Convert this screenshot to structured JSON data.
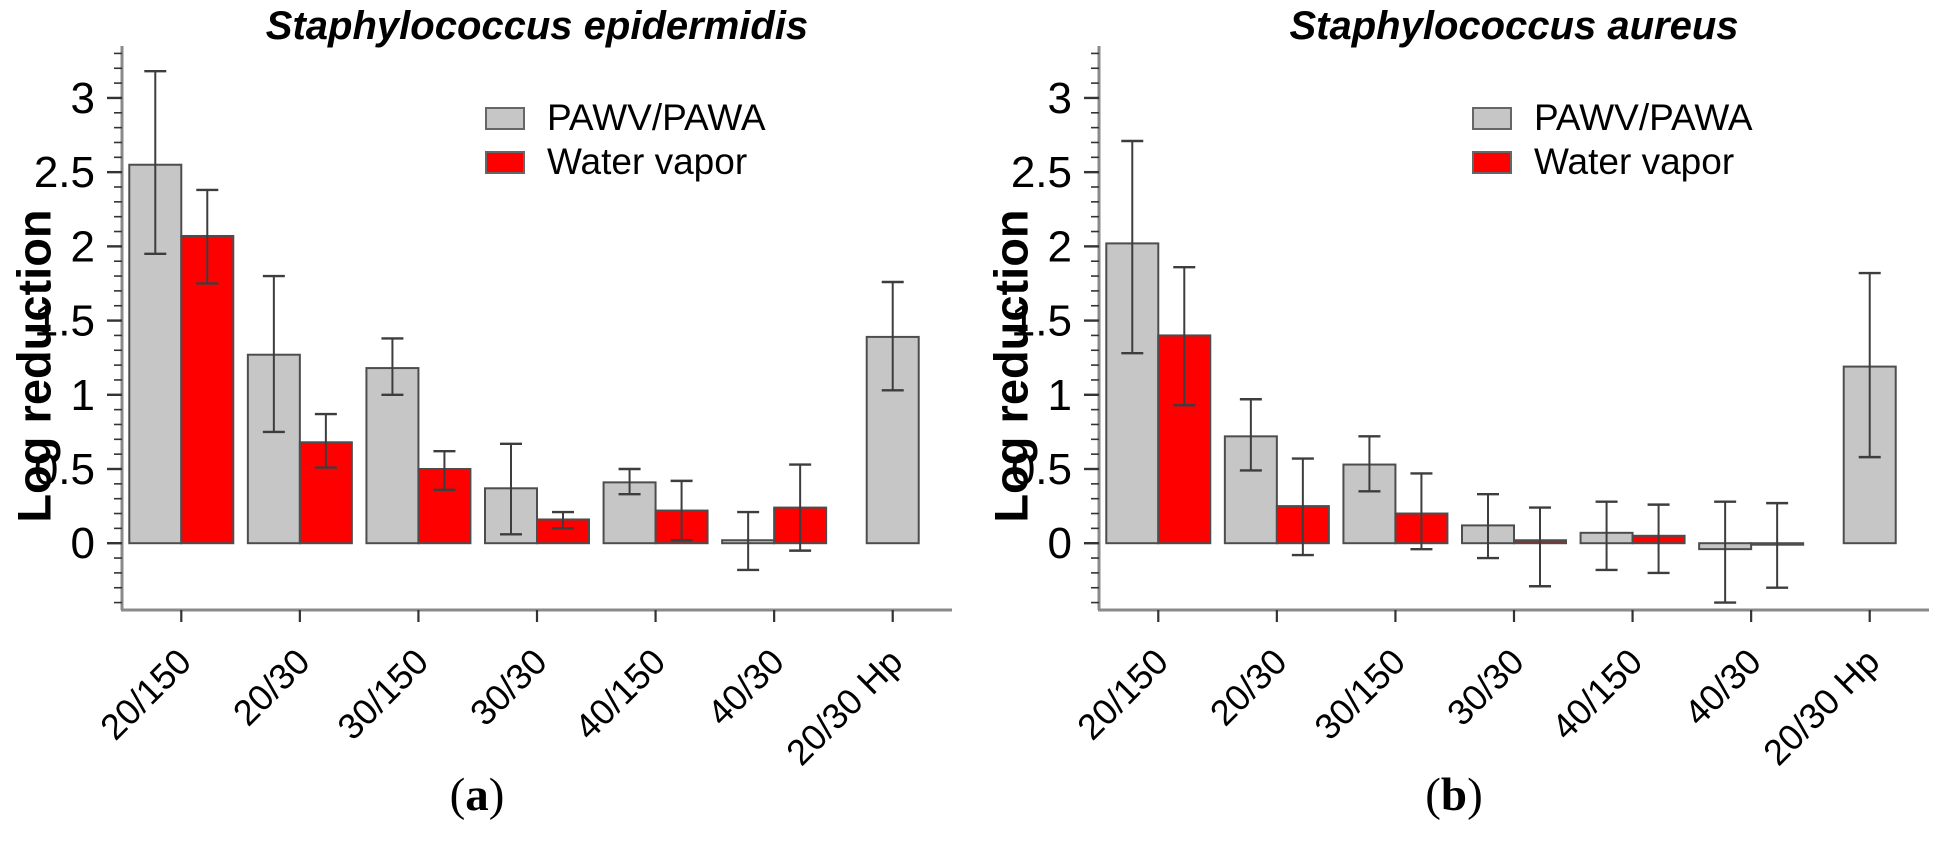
{
  "figure": {
    "legend": {
      "position": "top-center",
      "items": [
        {
          "label": "PAWV/PAWA",
          "swatch": "gray-swatch",
          "color": "#c6c6c6"
        },
        {
          "label": "Water vapor",
          "swatch": "red-swatch",
          "color": "#ff0000"
        }
      ]
    }
  },
  "colors": {
    "bar_gray": "#c6c6c6",
    "bar_red": "#ff0000",
    "bar_stroke": "#4d4d4d",
    "error_bar": "#3d3d3d",
    "axis_spine": "#8a8a8a",
    "tick": "#333333",
    "text": "#000000",
    "background": "#ffffff"
  },
  "chart_data": [
    {
      "type": "bar",
      "title": "Staphylococcus epidermidis",
      "caption_prefix": "(",
      "caption_letter": "a",
      "caption_suffix": ")",
      "xlabel": "",
      "ylabel": "Log reduction",
      "ylim": [
        -0.45,
        3.35
      ],
      "yticks": [
        0,
        0.5,
        1,
        1.5,
        2,
        2.5,
        3
      ],
      "ytick_labels": [
        "0",
        "0.5",
        "1",
        "1.5",
        "2",
        "2.5",
        "3"
      ],
      "minor_tick_step": 0.1,
      "grid": false,
      "categories": [
        "20/150",
        "20/30",
        "30/150",
        "30/30",
        "40/150",
        "40/30",
        "20/30 Hp"
      ],
      "series": [
        {
          "name": "PAWV/PAWA",
          "color_key": "bar_gray",
          "values": [
            2.55,
            1.27,
            1.18,
            0.37,
            0.41,
            0.02,
            1.39
          ],
          "err_lo": [
            1.95,
            0.75,
            1.0,
            0.06,
            0.33,
            -0.18,
            1.03
          ],
          "err_hi": [
            3.18,
            1.8,
            1.38,
            0.67,
            0.5,
            0.21,
            1.76
          ]
        },
        {
          "name": "Water vapor",
          "color_key": "bar_red",
          "values": [
            2.07,
            0.68,
            0.5,
            0.16,
            0.22,
            0.24,
            null
          ],
          "err_lo": [
            1.75,
            0.51,
            0.36,
            0.1,
            0.02,
            -0.05,
            null
          ],
          "err_hi": [
            2.38,
            0.87,
            0.62,
            0.21,
            0.42,
            0.53,
            null
          ]
        }
      ]
    },
    {
      "type": "bar",
      "title": "Staphylococcus aureus",
      "caption_prefix": "(",
      "caption_letter": "b",
      "caption_suffix": ")",
      "xlabel": "",
      "ylabel": "Log reduction",
      "ylim": [
        -0.45,
        3.35
      ],
      "yticks": [
        0,
        0.5,
        1,
        1.5,
        2,
        2.5,
        3
      ],
      "ytick_labels": [
        "0",
        "0.5",
        "1",
        "1.5",
        "2",
        "2.5",
        "3"
      ],
      "minor_tick_step": 0.1,
      "grid": false,
      "categories": [
        "20/150",
        "20/30",
        "30/150",
        "30/30",
        "40/150",
        "40/30",
        "20/30 Hp"
      ],
      "series": [
        {
          "name": "PAWV/PAWA",
          "color_key": "bar_gray",
          "values": [
            2.02,
            0.72,
            0.53,
            0.12,
            0.07,
            -0.04,
            1.19
          ],
          "err_lo": [
            1.28,
            0.49,
            0.35,
            -0.1,
            -0.18,
            -0.4,
            0.58
          ],
          "err_hi": [
            2.71,
            0.97,
            0.72,
            0.33,
            0.28,
            0.28,
            1.82
          ]
        },
        {
          "name": "Water vapor",
          "color_key": "bar_red",
          "values": [
            1.4,
            0.25,
            0.2,
            0.02,
            0.05,
            -0.01,
            null
          ],
          "err_lo": [
            0.93,
            -0.08,
            -0.04,
            -0.29,
            -0.2,
            -0.3,
            null
          ],
          "err_hi": [
            1.86,
            0.57,
            0.47,
            0.24,
            0.26,
            0.27,
            null
          ]
        }
      ]
    }
  ]
}
